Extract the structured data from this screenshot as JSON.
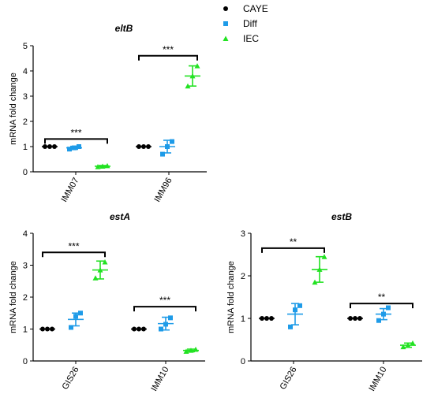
{
  "legend": {
    "position": "top-right",
    "items": [
      {
        "label": "CAYE",
        "color": "#000000",
        "marker": "circle"
      },
      {
        "label": "Diff",
        "color": "#1E9BE8",
        "marker": "square"
      },
      {
        "label": "IEC",
        "color": "#22E222",
        "marker": "triangle"
      }
    ]
  },
  "chart_data": [
    {
      "type": "scatter",
      "title": "eltB",
      "ylabel": "mRNA fold change",
      "xlabel": "",
      "ylim": [
        0,
        5
      ],
      "yticks": [
        0,
        1,
        2,
        3,
        4,
        5
      ],
      "categories": [
        "IMM07",
        "IMM96"
      ],
      "series": [
        {
          "name": "CAYE",
          "color": "#000000",
          "values": [
            [
              1,
              1,
              1
            ],
            [
              1,
              1,
              1
            ]
          ],
          "mean": [
            1.0,
            1.0
          ],
          "err": [
            0,
            0
          ]
        },
        {
          "name": "Diff",
          "color": "#1E9BE8",
          "values": [
            [
              0.9,
              0.95,
              1.0
            ],
            [
              0.7,
              1.0,
              1.2
            ]
          ],
          "mean": [
            0.95,
            1.0
          ],
          "err": [
            0.06,
            0.25
          ]
        },
        {
          "name": "IEC",
          "color": "#22E222",
          "values": [
            [
              0.2,
              0.22,
              0.24
            ],
            [
              3.4,
              3.8,
              4.2
            ]
          ],
          "mean": [
            0.22,
            3.8
          ],
          "err": [
            0.03,
            0.4
          ]
        }
      ],
      "significance": [
        {
          "category": "IMM07",
          "from": "CAYE",
          "to": "IEC",
          "y": 1.3,
          "label": "***"
        },
        {
          "category": "IMM96",
          "from": "CAYE",
          "to": "IEC",
          "y": 4.6,
          "label": "***"
        }
      ]
    },
    {
      "type": "scatter",
      "title": "estA",
      "ylabel": "mRNA fold change",
      "xlabel": "",
      "ylim": [
        0,
        4
      ],
      "yticks": [
        0,
        1,
        2,
        3,
        4
      ],
      "categories": [
        "GIS26",
        "IMM10"
      ],
      "series": [
        {
          "name": "CAYE",
          "color": "#000000",
          "values": [
            [
              1,
              1,
              1
            ],
            [
              1,
              1,
              1
            ]
          ],
          "mean": [
            1.0,
            1.0
          ],
          "err": [
            0,
            0
          ]
        },
        {
          "name": "Diff",
          "color": "#1E9BE8",
          "values": [
            [
              1.05,
              1.4,
              1.5
            ],
            [
              1.0,
              1.15,
              1.35
            ]
          ],
          "mean": [
            1.3,
            1.17
          ],
          "err": [
            0.2,
            0.2
          ]
        },
        {
          "name": "IEC",
          "color": "#22E222",
          "values": [
            [
              2.6,
              2.85,
              3.1
            ],
            [
              0.3,
              0.33,
              0.36
            ]
          ],
          "mean": [
            2.85,
            0.33
          ],
          "err": [
            0.28,
            0.04
          ]
        }
      ],
      "significance": [
        {
          "category": "GIS26",
          "from": "CAYE",
          "to": "IEC",
          "y": 3.4,
          "label": "***"
        },
        {
          "category": "IMM10",
          "from": "CAYE",
          "to": "IEC",
          "y": 1.7,
          "label": "***"
        }
      ]
    },
    {
      "type": "scatter",
      "title": "estB",
      "ylabel": "mRNA fold change",
      "xlabel": "",
      "ylim": [
        0,
        3
      ],
      "yticks": [
        0,
        1,
        2,
        3
      ],
      "categories": [
        "GIS26",
        "IMM10"
      ],
      "series": [
        {
          "name": "CAYE",
          "color": "#000000",
          "values": [
            [
              1,
              1,
              1
            ],
            [
              1,
              1,
              1
            ]
          ],
          "mean": [
            1.0,
            1.0
          ],
          "err": [
            0,
            0
          ]
        },
        {
          "name": "Diff",
          "color": "#1E9BE8",
          "values": [
            [
              0.8,
              1.2,
              1.3
            ],
            [
              0.95,
              1.1,
              1.25
            ]
          ],
          "mean": [
            1.1,
            1.1
          ],
          "err": [
            0.25,
            0.13
          ]
        },
        {
          "name": "IEC",
          "color": "#22E222",
          "values": [
            [
              1.85,
              2.15,
              2.45
            ],
            [
              0.33,
              0.37,
              0.42
            ]
          ],
          "mean": [
            2.15,
            0.37
          ],
          "err": [
            0.3,
            0.05
          ]
        }
      ],
      "significance": [
        {
          "category": "GIS26",
          "from": "CAYE",
          "to": "IEC",
          "y": 2.65,
          "label": "**"
        },
        {
          "category": "IMM10",
          "from": "CAYE",
          "to": "IEC",
          "y": 1.35,
          "label": "**"
        }
      ]
    }
  ]
}
